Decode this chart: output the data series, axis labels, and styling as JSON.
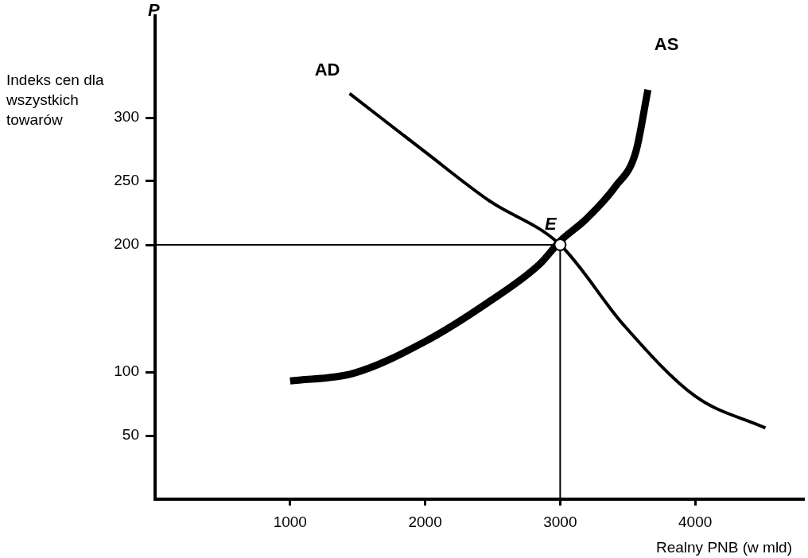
{
  "chart_data": {
    "type": "line",
    "xlabel": "Realny PNB  (w mld)",
    "ylabel": "Indeks cen dla wszystkich towarów",
    "xlim": [
      0,
      4800
    ],
    "xticks": [
      1000,
      2000,
      3000,
      4000
    ],
    "ylim": [
      0,
      380
    ],
    "yticks": [
      50,
      100,
      200,
      250,
      300
    ],
    "grid": false,
    "legend": false,
    "marker": "none",
    "line_style": "solid",
    "series": [
      {
        "name": "AD",
        "color": "#000000",
        "x": [
          1440,
          2000,
          2470,
          3000,
          3470,
          4000,
          4520
        ],
        "values": [
          319,
          273,
          235,
          200,
          137,
          81,
          56
        ]
      },
      {
        "name": "AS",
        "color": "#000000",
        "x": [
          1000,
          1470,
          2000,
          2470,
          2850,
          3000,
          3190,
          3410,
          3560,
          3650
        ],
        "values": [
          93,
          99,
          124,
          155,
          185,
          203,
          220,
          246,
          273,
          322
        ]
      }
    ],
    "ref_lines": [
      {
        "axis": "y",
        "value": 200
      },
      {
        "axis": "x",
        "value": 3000
      }
    ],
    "annotations": [
      "P",
      {
        "text": "E",
        "x": 3000,
        "y": 200
      }
    ]
  }
}
